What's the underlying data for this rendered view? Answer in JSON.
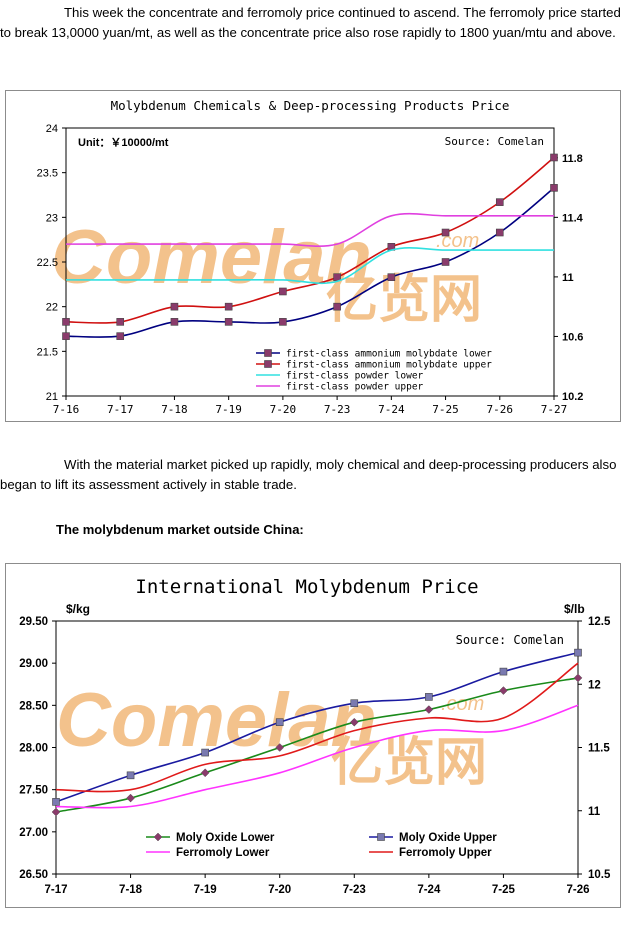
{
  "paragraphs": {
    "p1": "This week the concentrate and ferromoly price continued to ascend. The ferromoly price started to break 13,0000 yuan/mt, as well as the concentrate price also rose rapidly to 1800 yuan/mtu and above.",
    "p2": "With the material market picked up rapidly, moly chemical and deep-processing producers also began to lift its assessment actively in stable trade.",
    "heading": "The molybdenum market outside China:"
  },
  "watermark": {
    "latin": "Comelan",
    "domain": ".com",
    "cjk": "亿览网",
    "color": "#f2b878"
  },
  "chart_data": [
    {
      "type": "line",
      "title": "Molybdenum Chemicals & Deep-processing Products Price",
      "unit_label": "Unit：￥10000/mt",
      "source": "Source: Comelan",
      "categories": [
        "7-16",
        "7-17",
        "7-18",
        "7-19",
        "7-20",
        "7-23",
        "7-24",
        "7-25",
        "7-26",
        "7-27"
      ],
      "y_left": {
        "min": 21,
        "max": 24,
        "ticks": [
          21,
          21.5,
          22,
          22.5,
          23,
          23.5,
          24
        ],
        "labels": [
          "21",
          "21.5",
          "22",
          "22.5",
          "23",
          "23.5",
          "24"
        ]
      },
      "y_right": {
        "min": 10.2,
        "max": 12,
        "ticks": [
          10.2,
          10.6,
          11,
          11.4,
          11.8
        ],
        "labels": [
          "10.2",
          "10.6",
          "11",
          "11.4",
          "11.8"
        ]
      },
      "legend_position": "bottom-right",
      "series": [
        {
          "name": "first-class ammonium molybdate lower",
          "axis": "left",
          "color": "#000080",
          "marker": "square",
          "marker_color": "#8a3b6b",
          "values": [
            21.67,
            21.67,
            21.83,
            21.83,
            21.83,
            22.0,
            22.33,
            22.5,
            22.83,
            23.33
          ]
        },
        {
          "name": "first-class ammonium molybdate upper",
          "axis": "left",
          "color": "#d01010",
          "marker": "square",
          "marker_color": "#8a3b6b",
          "values": [
            21.83,
            21.83,
            22.0,
            22.0,
            22.17,
            22.33,
            22.67,
            22.83,
            23.17,
            23.67
          ]
        },
        {
          "name": "first-class powder lower",
          "axis": "right",
          "color": "#30e0e0",
          "marker": "none",
          "values": [
            10.98,
            10.98,
            10.98,
            10.98,
            10.98,
            10.97,
            11.18,
            11.18,
            11.18,
            11.18
          ]
        },
        {
          "name": "first-class powder upper",
          "axis": "right",
          "color": "#e040e0",
          "marker": "none",
          "values": [
            11.22,
            11.22,
            11.22,
            11.22,
            11.22,
            11.22,
            11.41,
            11.41,
            11.41,
            11.41
          ]
        }
      ]
    },
    {
      "type": "line",
      "title": "International Molybdenum Price",
      "unit_left": "$/kg",
      "unit_right": "$/lb",
      "source": "Source: Comelan",
      "categories": [
        "7-17",
        "7-18",
        "7-19",
        "7-20",
        "7-23",
        "7-24",
        "7-25",
        "7-26"
      ],
      "y_left": {
        "min": 26.5,
        "max": 29.5,
        "ticks": [
          26.5,
          27,
          27.5,
          28,
          28.5,
          29,
          29.5
        ],
        "labels": [
          "26.50",
          "27.00",
          "27.50",
          "28.00",
          "28.50",
          "29.00",
          "29.50"
        ]
      },
      "y_right": {
        "min": 10.5,
        "max": 12.5,
        "ticks": [
          10.5,
          11,
          11.5,
          12,
          12.5
        ],
        "labels": [
          "10.5",
          "11",
          "11.5",
          "12",
          "12.5"
        ]
      },
      "legend_position": "bottom",
      "series": [
        {
          "name": "Moly Oxide Lower",
          "axis": "right",
          "color": "#1a8a1a",
          "marker": "diamond",
          "marker_color": "#8a3b6b",
          "values": [
            10.99,
            11.1,
            11.3,
            11.5,
            11.7,
            11.8,
            11.95,
            12.05
          ]
        },
        {
          "name": "Moly Oxide Upper",
          "axis": "right",
          "color": "#1a1aa0",
          "marker": "square",
          "marker_color": "#7a7ab0",
          "values": [
            11.07,
            11.28,
            11.46,
            11.7,
            11.85,
            11.9,
            12.1,
            12.25
          ]
        },
        {
          "name": "Ferromoly Lower",
          "axis": "left",
          "color": "#ff33ff",
          "marker": "none",
          "values": [
            27.3,
            27.3,
            27.5,
            27.7,
            28.0,
            28.2,
            28.2,
            28.5
          ]
        },
        {
          "name": "Ferromoly Upper",
          "axis": "left",
          "color": "#e01a1a",
          "marker": "none",
          "values": [
            27.5,
            27.5,
            27.8,
            27.9,
            28.2,
            28.35,
            28.35,
            29.0
          ]
        }
      ]
    }
  ]
}
